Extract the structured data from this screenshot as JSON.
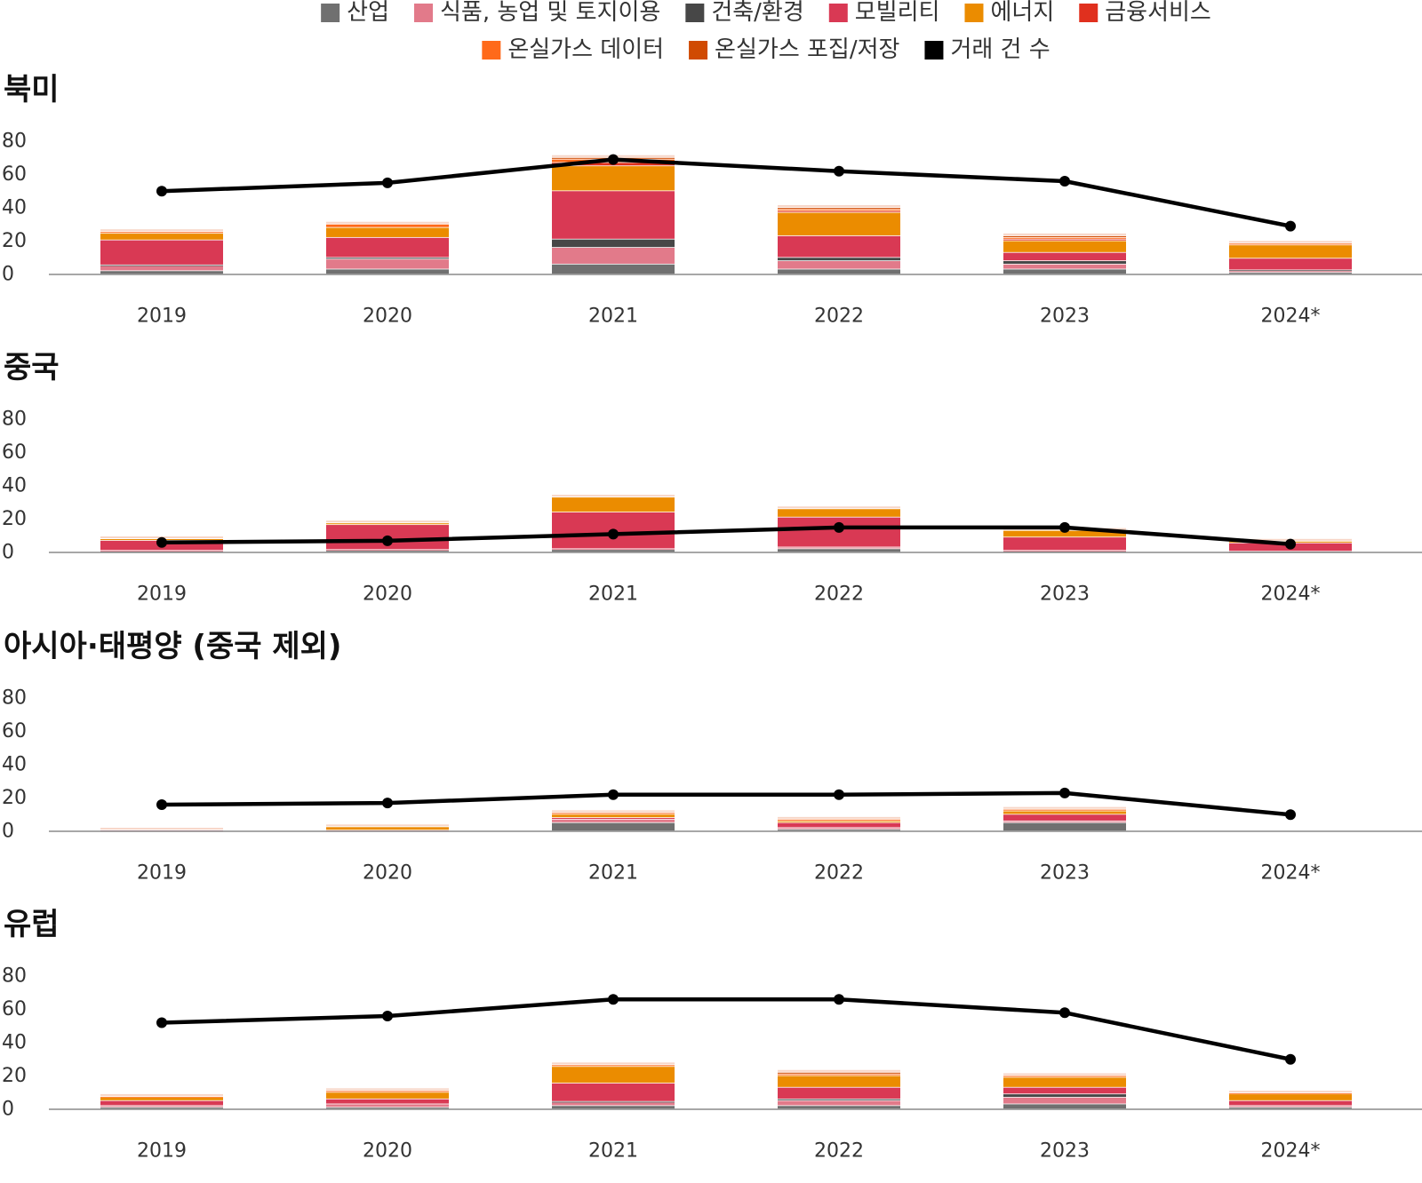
{
  "legend": {
    "items": [
      {
        "label": "산업",
        "color": "#707070"
      },
      {
        "label": "식품, 농업 및 토지이용",
        "color": "#E27A8A"
      },
      {
        "label": "건축/환경",
        "color": "#474747"
      },
      {
        "label": "모빌리티",
        "color": "#D93954"
      },
      {
        "label": "에너지",
        "color": "#EB8C00"
      },
      {
        "label": "금융서비스",
        "color": "#E0301E"
      },
      {
        "label": "온실가스 데이터",
        "color": "#FF6A1A"
      },
      {
        "label": "온실가스 포집/저장",
        "color": "#D04A02"
      },
      {
        "label": "거래 건 수",
        "color": "#000000"
      }
    ]
  },
  "chart_data": [
    {
      "type": "bar",
      "title": "북미",
      "categories": [
        "2019",
        "2020",
        "2021",
        "2022",
        "2023",
        "2024*"
      ],
      "ylim": [
        0,
        80
      ],
      "yticks": [
        "0",
        "20",
        "40",
        "60",
        "80"
      ],
      "series": [
        {
          "name": "산업",
          "values": [
            2,
            3,
            6,
            3,
            3,
            1
          ]
        },
        {
          "name": "식품, 농업 및 토지이용",
          "values": [
            3,
            6,
            10,
            5,
            3,
            1
          ]
        },
        {
          "name": "건축/환경",
          "values": [
            0.5,
            1,
            5,
            2,
            2,
            0.5
          ]
        },
        {
          "name": "모빌리티",
          "values": [
            15,
            12,
            29,
            13,
            5,
            7
          ]
        },
        {
          "name": "에너지",
          "values": [
            4,
            6,
            15,
            14,
            7,
            8
          ]
        },
        {
          "name": "금융서비스",
          "values": [
            0,
            0,
            2,
            1,
            1,
            0
          ]
        },
        {
          "name": "온실가스 데이터",
          "values": [
            1,
            2,
            2,
            1,
            1,
            1
          ]
        },
        {
          "name": "온실가스 포집/저장",
          "values": [
            0,
            0,
            1,
            1,
            1,
            0
          ]
        }
      ],
      "line": {
        "name": "거래 건 수",
        "values": [
          50,
          55,
          69,
          62,
          56,
          29
        ]
      }
    },
    {
      "type": "bar",
      "title": "중국",
      "categories": [
        "2019",
        "2020",
        "2021",
        "2022",
        "2023",
        "2024*"
      ],
      "ylim": [
        0,
        80
      ],
      "yticks": [
        "0",
        "20",
        "40",
        "60",
        "80"
      ],
      "series": [
        {
          "name": "산업",
          "values": [
            0.5,
            1,
            1.5,
            2,
            0.5,
            0.5
          ]
        },
        {
          "name": "식품, 농업 및 토지이용",
          "values": [
            0.5,
            0.5,
            0.5,
            1,
            0.5,
            0
          ]
        },
        {
          "name": "건축/환경",
          "values": [
            0,
            0,
            0,
            0,
            0,
            0
          ]
        },
        {
          "name": "모빌리티",
          "values": [
            6,
            15,
            22,
            18,
            8,
            5
          ]
        },
        {
          "name": "에너지",
          "values": [
            1,
            1,
            9,
            5,
            4,
            1
          ]
        },
        {
          "name": "금융서비스",
          "values": [
            0,
            0,
            0,
            0,
            0,
            0
          ]
        },
        {
          "name": "온실가스 데이터",
          "values": [
            0,
            0,
            0,
            0,
            0,
            0
          ]
        },
        {
          "name": "온실가스 포집/저장",
          "values": [
            0,
            0,
            0,
            0,
            0,
            0
          ]
        }
      ],
      "line": {
        "name": "거래 건 수",
        "values": [
          6,
          7,
          11,
          15,
          15,
          5
        ]
      }
    },
    {
      "type": "bar",
      "title": "아시아·태평양 (중국 제외)",
      "categories": [
        "2019",
        "2020",
        "2021",
        "2022",
        "2023",
        "2024*"
      ],
      "ylim": [
        0,
        80
      ],
      "yticks": [
        "0",
        "20",
        "40",
        "60",
        "80"
      ],
      "series": [
        {
          "name": "산업",
          "values": [
            0,
            0,
            5,
            1,
            5,
            0
          ]
        },
        {
          "name": "식품, 농업 및 토지이용",
          "values": [
            0.5,
            0.5,
            2,
            1,
            1,
            0
          ]
        },
        {
          "name": "건축/환경",
          "values": [
            0,
            0,
            0,
            0,
            0,
            0
          ]
        },
        {
          "name": "모빌리티",
          "values": [
            0,
            0,
            1,
            3,
            4,
            0
          ]
        },
        {
          "name": "에너지",
          "values": [
            0,
            2,
            2,
            1,
            2,
            0
          ]
        },
        {
          "name": "금융서비스",
          "values": [
            0,
            0,
            0,
            0,
            0,
            0
          ]
        },
        {
          "name": "온실가스 데이터",
          "values": [
            0,
            0,
            1,
            1,
            1,
            0
          ]
        },
        {
          "name": "온실가스 포집/저장",
          "values": [
            0,
            0,
            0,
            0,
            0,
            0
          ]
        }
      ],
      "line": {
        "name": "거래 건 수",
        "values": [
          16,
          17,
          22,
          22,
          23,
          10
        ]
      }
    },
    {
      "type": "bar",
      "title": "유럽",
      "categories": [
        "2019",
        "2020",
        "2021",
        "2022",
        "2023",
        "2024*"
      ],
      "ylim": [
        0,
        80
      ],
      "yticks": [
        "0",
        "20",
        "40",
        "60",
        "80"
      ],
      "series": [
        {
          "name": "산업",
          "values": [
            1,
            1,
            2,
            2,
            3,
            1
          ]
        },
        {
          "name": "식품, 농업 및 토지이용",
          "values": [
            1,
            2,
            2,
            3,
            4,
            1
          ]
        },
        {
          "name": "건축/환경",
          "values": [
            0,
            0,
            0.5,
            1,
            2,
            0
          ]
        },
        {
          "name": "모빌리티",
          "values": [
            3,
            3,
            11,
            7,
            4,
            3
          ]
        },
        {
          "name": "에너지",
          "values": [
            2,
            4,
            10,
            7,
            6,
            4
          ]
        },
        {
          "name": "금융서비스",
          "values": [
            0,
            0,
            0,
            0,
            0,
            0
          ]
        },
        {
          "name": "온실가스 데이터",
          "values": [
            0.5,
            1,
            1,
            1,
            1,
            0.5
          ]
        },
        {
          "name": "온실가스 포집/저장",
          "values": [
            0,
            0,
            0,
            1,
            0,
            0
          ]
        }
      ],
      "line": {
        "name": "거래 건 수",
        "values": [
          52,
          56,
          66,
          66,
          58,
          30
        ]
      }
    }
  ]
}
